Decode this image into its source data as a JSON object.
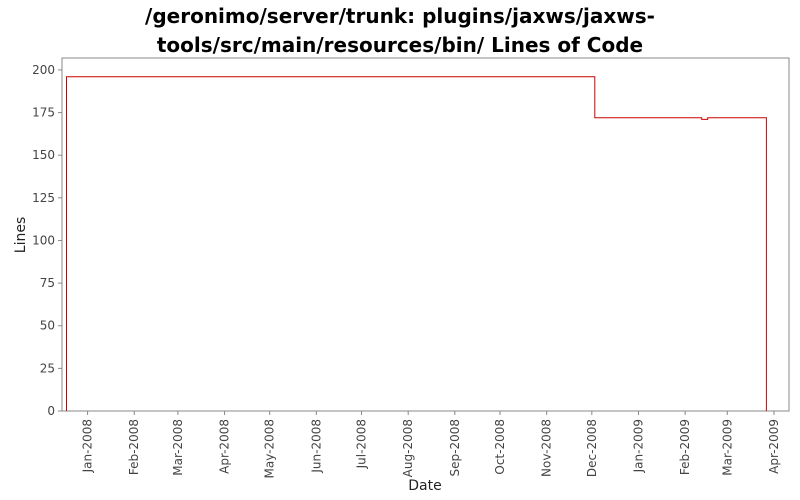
{
  "chart_data": {
    "type": "line",
    "title_lines": [
      "/geronimo/server/trunk: plugins/jaxws/jaxws-",
      "tools/src/main/resources/bin/ Lines of Code"
    ],
    "xlabel": "Date",
    "ylabel": "Lines",
    "ylim": [
      0,
      207
    ],
    "xlim": [
      "2007-12-15",
      "2009-04-11"
    ],
    "y_ticks": [
      0,
      25,
      50,
      75,
      100,
      125,
      150,
      175,
      200
    ],
    "x_ticks": [
      {
        "date": "2008-01-01",
        "label": "Jan-2008"
      },
      {
        "date": "2008-02-01",
        "label": "Feb-2008"
      },
      {
        "date": "2008-03-01",
        "label": "Mar-2008"
      },
      {
        "date": "2008-04-01",
        "label": "Apr-2008"
      },
      {
        "date": "2008-05-01",
        "label": "May-2008"
      },
      {
        "date": "2008-06-01",
        "label": "Jun-2008"
      },
      {
        "date": "2008-07-01",
        "label": "Jul-2008"
      },
      {
        "date": "2008-08-01",
        "label": "Aug-2008"
      },
      {
        "date": "2008-09-01",
        "label": "Sep-2008"
      },
      {
        "date": "2008-10-01",
        "label": "Oct-2008"
      },
      {
        "date": "2008-11-01",
        "label": "Nov-2008"
      },
      {
        "date": "2008-12-01",
        "label": "Dec-2008"
      },
      {
        "date": "2009-01-01",
        "label": "Jan-2009"
      },
      {
        "date": "2009-02-01",
        "label": "Feb-2009"
      },
      {
        "date": "2009-03-01",
        "label": "Mar-2009"
      },
      {
        "date": "2009-04-01",
        "label": "Apr-2009"
      }
    ],
    "grid": false,
    "step": true,
    "line_color": "#cc0000",
    "series": [
      {
        "points": [
          {
            "x": "2007-12-18",
            "y": 0
          },
          {
            "x": "2007-12-18",
            "y": 196
          },
          {
            "x": "2008-12-03",
            "y": 196
          },
          {
            "x": "2008-12-03",
            "y": 172
          },
          {
            "x": "2009-02-12",
            "y": 172
          },
          {
            "x": "2009-02-12",
            "y": 171
          },
          {
            "x": "2009-02-16",
            "y": 171
          },
          {
            "x": "2009-02-16",
            "y": 172
          },
          {
            "x": "2009-03-27",
            "y": 172
          },
          {
            "x": "2009-03-27",
            "y": 0
          }
        ]
      }
    ]
  }
}
